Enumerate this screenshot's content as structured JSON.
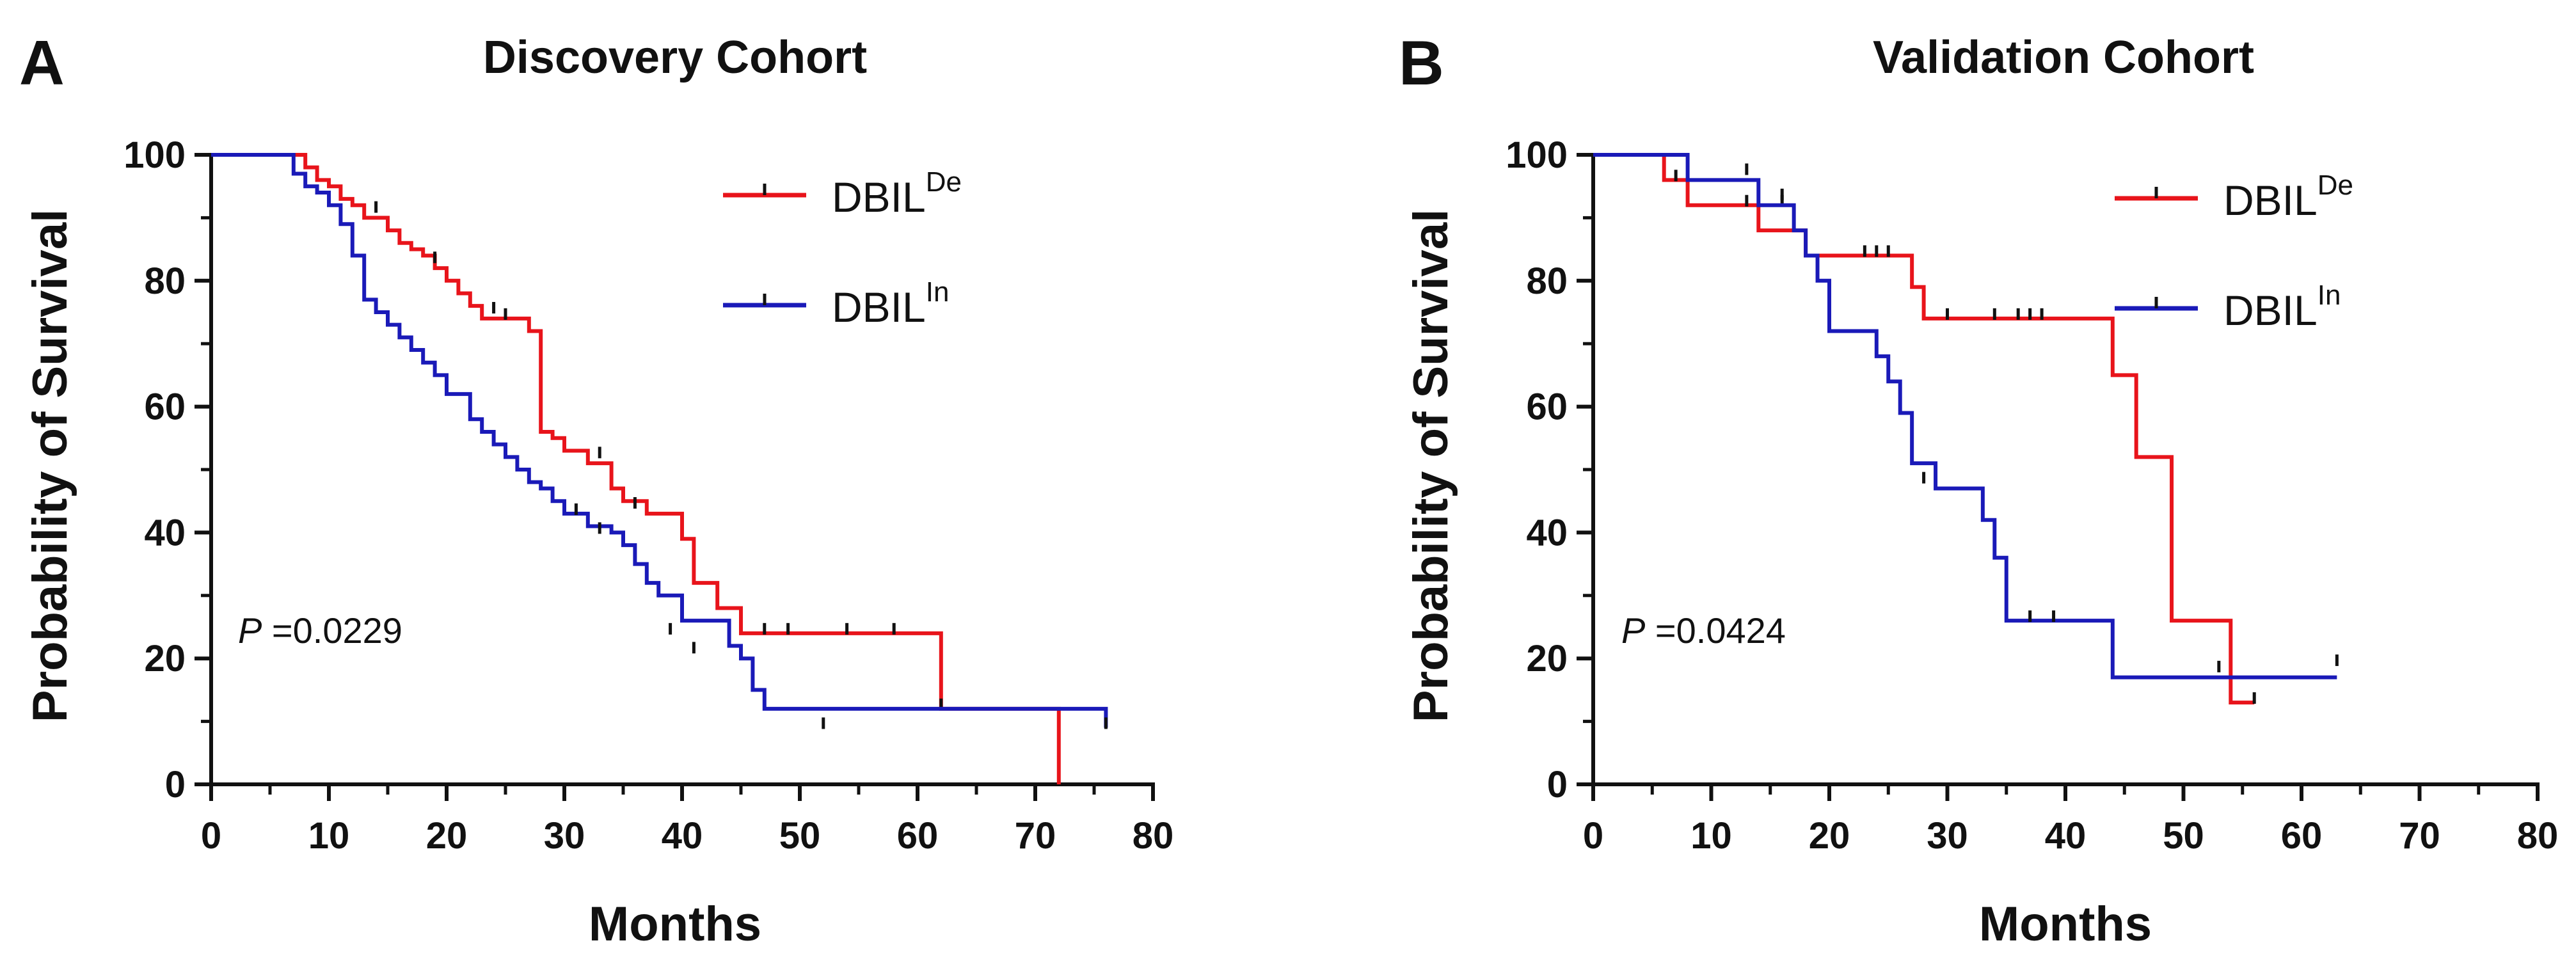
{
  "chart_data": [
    {
      "type": "line",
      "panel_label": "A",
      "title": "Discovery Cohort",
      "xlabel": "Months",
      "ylabel": "Probability of Survival",
      "xlim": [
        0,
        80
      ],
      "ylim": [
        0,
        100
      ],
      "x_ticks": [
        "0",
        "10",
        "20",
        "30",
        "40",
        "50",
        "60",
        "70",
        "80"
      ],
      "y_ticks": [
        "0",
        "20",
        "40",
        "60",
        "80",
        "100"
      ],
      "grid": false,
      "legend_position": "top-right",
      "annotation": {
        "prefix": "P",
        "text": " =0.0229"
      },
      "series": [
        {
          "name": "DBIL",
          "superscript": "De",
          "color": "#e8141b",
          "x": [
            0,
            8,
            9,
            10,
            11,
            12,
            13,
            15,
            16,
            17,
            18,
            19,
            20,
            21,
            22,
            23,
            27,
            28,
            29,
            30,
            32,
            34,
            35,
            37,
            40,
            41,
            43,
            45,
            62,
            72
          ],
          "y": [
            100,
            98,
            96,
            95,
            93,
            92,
            90,
            88,
            86,
            85,
            84,
            82,
            80,
            78,
            76,
            74,
            72,
            56,
            55,
            53,
            51,
            47,
            45,
            43,
            39,
            32,
            28,
            24,
            12,
            0
          ],
          "censor_x": [
            14,
            19,
            24,
            25,
            33,
            36,
            47,
            49,
            54,
            58,
            62
          ],
          "censor_y": [
            91,
            83,
            75,
            74,
            52,
            44,
            24,
            24,
            24,
            24,
            12
          ]
        },
        {
          "name": "DBIL",
          "superscript": "In",
          "color": "#1a1ab8",
          "x": [
            0,
            7,
            8,
            9,
            10,
            11,
            12,
            13,
            14,
            15,
            16,
            17,
            18,
            19,
            20,
            22,
            23,
            24,
            25,
            26,
            27,
            28,
            29,
            30,
            32,
            34,
            35,
            36,
            37,
            38,
            40,
            44,
            45,
            46,
            47,
            76
          ],
          "y": [
            100,
            97,
            95,
            94,
            92,
            89,
            84,
            77,
            75,
            73,
            71,
            69,
            67,
            65,
            62,
            58,
            56,
            54,
            52,
            50,
            48,
            47,
            45,
            43,
            41,
            40,
            38,
            35,
            32,
            30,
            26,
            22,
            20,
            15,
            12,
            9
          ],
          "censor_x": [
            31,
            33,
            39,
            41,
            52,
            76
          ],
          "censor_y": [
            43,
            40,
            24,
            21,
            9,
            9
          ]
        }
      ]
    },
    {
      "type": "line",
      "panel_label": "B",
      "title": "Validation Cohort",
      "xlabel": "Months",
      "ylabel": "Probability of Survival",
      "xlim": [
        0,
        80
      ],
      "ylim": [
        0,
        100
      ],
      "x_ticks": [
        "0",
        "10",
        "20",
        "30",
        "40",
        "50",
        "60",
        "70",
        "80"
      ],
      "y_ticks": [
        "0",
        "20",
        "40",
        "60",
        "80",
        "100"
      ],
      "grid": false,
      "legend_position": "top-right",
      "annotation": {
        "prefix": "P",
        "text": " =0.0424"
      },
      "series": [
        {
          "name": "DBIL",
          "superscript": "De",
          "color": "#e8141b",
          "x": [
            0,
            6,
            8,
            14,
            18,
            27,
            28,
            44,
            46,
            49,
            54,
            56
          ],
          "y": [
            100,
            96,
            92,
            88,
            84,
            79,
            74,
            65,
            52,
            26,
            13,
            13
          ],
          "censor_x": [
            7,
            13,
            16,
            23,
            24,
            25,
            30,
            34,
            36,
            37,
            38,
            53,
            56
          ],
          "censor_y": [
            96,
            92,
            92,
            84,
            84,
            84,
            74,
            74,
            74,
            74,
            74,
            18,
            13
          ]
        },
        {
          "name": "DBIL",
          "superscript": "In",
          "color": "#1a1ab8",
          "x": [
            0,
            8,
            14,
            17,
            18,
            19,
            20,
            24,
            25,
            26,
            27,
            29,
            33,
            34,
            35,
            44,
            63
          ],
          "y": [
            100,
            96,
            92,
            88,
            84,
            80,
            72,
            68,
            64,
            59,
            51,
            47,
            42,
            36,
            26,
            17,
            17
          ],
          "censor_x": [
            13,
            16,
            28,
            37,
            39,
            63
          ],
          "censor_y": [
            97,
            93,
            48,
            26,
            26,
            19
          ]
        }
      ]
    }
  ]
}
